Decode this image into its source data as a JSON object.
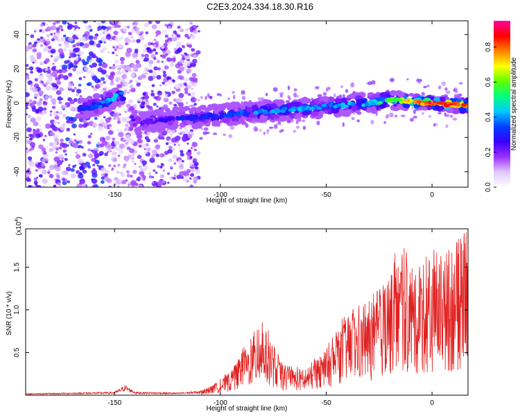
{
  "title": "C2E3.2024.334.18.30.R16",
  "chart_data": [
    {
      "type": "heatmap",
      "xlabel": "Height of straight line (km)",
      "ylabel": "Frequency (Hz)",
      "xlim": [
        -192,
        17
      ],
      "ylim": [
        -49,
        48
      ],
      "x_ticks": [
        -150,
        -100,
        -50,
        0
      ],
      "y_ticks": [
        -40,
        -20,
        0,
        20,
        40
      ],
      "colorbar": {
        "label": "Normalized spectral amplitude",
        "range": [
          0,
          0.95
        ],
        "ticks": [
          0.0,
          0.2,
          0.4,
          0.6,
          0.8
        ],
        "colors": [
          "#ffffff",
          "#e0c8ff",
          "#9b30ff",
          "#3a00ff",
          "#0040ff",
          "#00c8ff",
          "#00ff80",
          "#60ff00",
          "#ffff00",
          "#ff8000",
          "#ff0000",
          "#ff00a0"
        ]
      },
      "ridge": {
        "x": [
          -165,
          -160,
          -155,
          -150,
          -147,
          -145,
          -140,
          -130,
          -120,
          -110,
          -100,
          -90,
          -80,
          -70,
          -60,
          -50,
          -40,
          -30,
          -20,
          -10,
          0,
          10,
          17
        ],
        "y": [
          -3,
          -2,
          0,
          3,
          7,
          -1,
          -12,
          -10,
          -9,
          -8,
          -7,
          -6,
          -5,
          -4,
          -3,
          -2,
          -1,
          0,
          2,
          1,
          0,
          -1,
          -1
        ],
        "amplitude": [
          0.3,
          0.35,
          0.4,
          0.45,
          0.4,
          0.2,
          0.25,
          0.25,
          0.28,
          0.3,
          0.32,
          0.35,
          0.4,
          0.42,
          0.4,
          0.4,
          0.42,
          0.45,
          0.55,
          0.75,
          0.9,
          0.85,
          0.8
        ]
      },
      "noise_region": [
        -192,
        -110
      ]
    },
    {
      "type": "line",
      "xlabel": "Height of straight line (km)",
      "ylabel": "SNR (10 * v/v)",
      "y_scale_label": "(x10",
      "y_scale_exp": "4",
      "xlim": [
        -192,
        17
      ],
      "ylim": [
        0,
        1.95
      ],
      "x_ticks": [
        -150,
        -100,
        -50,
        0
      ],
      "y_ticks": [
        0.5,
        1.0,
        1.5
      ],
      "series_color": "#e02020",
      "envelope": {
        "x": [
          -192,
          -170,
          -150,
          -145,
          -140,
          -120,
          -110,
          -105,
          -100,
          -95,
          -90,
          -85,
          -80,
          -75,
          -70,
          -65,
          -60,
          -55,
          -50,
          -45,
          -40,
          -35,
          -30,
          -25,
          -20,
          -15,
          -10,
          -5,
          0,
          5,
          10,
          15,
          17
        ],
        "y": [
          0.02,
          0.03,
          0.04,
          0.12,
          0.04,
          0.03,
          0.05,
          0.1,
          0.2,
          0.3,
          0.55,
          0.7,
          0.95,
          0.6,
          0.35,
          0.35,
          0.3,
          0.45,
          0.55,
          0.8,
          1.0,
          1.05,
          1.1,
          1.3,
          1.5,
          1.85,
          1.55,
          1.6,
          1.7,
          1.8,
          1.75,
          1.95,
          1.9
        ]
      }
    }
  ]
}
